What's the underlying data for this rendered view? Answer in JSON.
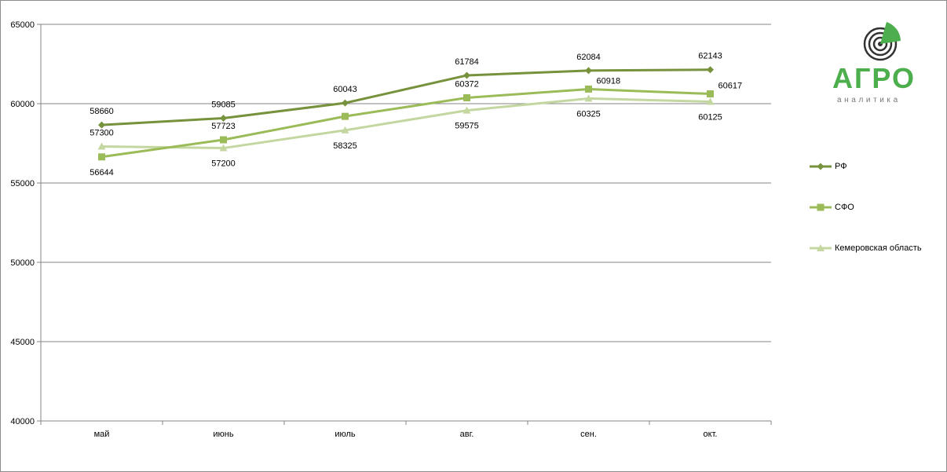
{
  "logo": {
    "main_text": "АГРО",
    "sub_text": "аналитика",
    "colors": {
      "green": "#4cae4c",
      "dark": "#333333"
    }
  },
  "chart_data": {
    "type": "line",
    "categories": [
      "май",
      "июнь",
      "июль",
      "авг.",
      "сен.",
      "окт."
    ],
    "ylim": [
      40000,
      65000
    ],
    "yticks": [
      40000,
      45000,
      50000,
      55000,
      60000,
      65000
    ],
    "grid": true,
    "legend_position": "right",
    "title": "",
    "xlabel": "",
    "ylabel": "",
    "series": [
      {
        "name": "РФ",
        "values": [
          58660,
          59085,
          60043,
          61784,
          62084,
          62143
        ],
        "color": "#76923c",
        "marker": "diamond",
        "label_pos": [
          "above",
          "above",
          "above",
          "above",
          "above",
          "above"
        ]
      },
      {
        "name": "СФО",
        "values": [
          56644,
          57723,
          59200,
          60372,
          60918,
          60617
        ],
        "labels": [
          "56644",
          "57723",
          "",
          "60372",
          "60918",
          "60617"
        ],
        "color": "#9bbb59",
        "marker": "square",
        "label_pos": [
          "below",
          "above",
          "none",
          "above",
          "right",
          "right"
        ]
      },
      {
        "name": "Кемеровская область",
        "values": [
          57300,
          57200,
          58325,
          59575,
          60325,
          60125
        ],
        "color": "#c4d7a0",
        "marker": "triangle",
        "label_pos": [
          "above",
          "below",
          "below",
          "below",
          "below",
          "below"
        ]
      }
    ]
  }
}
